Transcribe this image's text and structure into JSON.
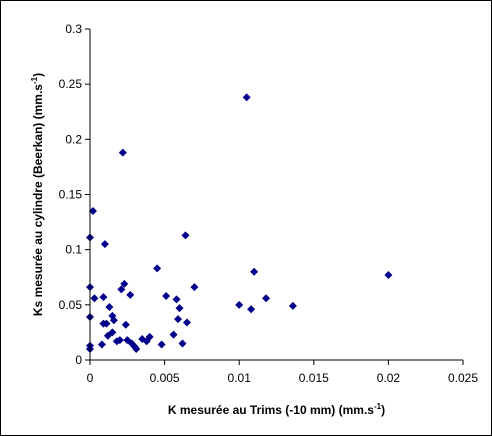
{
  "chart_data": {
    "type": "scatter",
    "xlabel": "K mesurée au Trims (-10 mm) (mm.s",
    "xlabel_sup": "-1",
    "xlabel_end": ")",
    "ylabel": "Ks mesurée au cylindre (Beerkan) (mm.s",
    "ylabel_sup": "-1",
    "ylabel_end": ")",
    "xlim": [
      0,
      0.025
    ],
    "ylim": [
      0,
      0.3
    ],
    "x_ticks": [
      "0",
      "0.005",
      "0.01",
      "0.015",
      "0.02",
      "0.025"
    ],
    "y_ticks": [
      "0",
      "0.05",
      "0.1",
      "0.15",
      "0.2",
      "0.25",
      "0.3"
    ],
    "marker_color": "#00008B",
    "marker": "diamond",
    "grid": false,
    "legend": "none",
    "series": [
      {
        "points": [
          [
            0.0,
            0.01
          ],
          [
            0.0,
            0.013
          ],
          [
            0.0,
            0.039
          ],
          [
            0.0,
            0.066
          ],
          [
            0.0,
            0.111
          ],
          [
            0.0002,
            0.135
          ],
          [
            0.0003,
            0.056
          ],
          [
            0.0008,
            0.014
          ],
          [
            0.0009,
            0.057
          ],
          [
            0.0009,
            0.033
          ],
          [
            0.001,
            0.105
          ],
          [
            0.0011,
            0.033
          ],
          [
            0.0012,
            0.022
          ],
          [
            0.0013,
            0.048
          ],
          [
            0.0015,
            0.04
          ],
          [
            0.0015,
            0.025
          ],
          [
            0.0016,
            0.036
          ],
          [
            0.0018,
            0.017
          ],
          [
            0.002,
            0.018
          ],
          [
            0.0021,
            0.064
          ],
          [
            0.0022,
            0.188
          ],
          [
            0.0023,
            0.069
          ],
          [
            0.0024,
            0.032
          ],
          [
            0.0025,
            0.018
          ],
          [
            0.0027,
            0.059
          ],
          [
            0.0028,
            0.015
          ],
          [
            0.003,
            0.012
          ],
          [
            0.0031,
            0.01
          ],
          [
            0.0035,
            0.019
          ],
          [
            0.0038,
            0.017
          ],
          [
            0.004,
            0.021
          ],
          [
            0.0045,
            0.083
          ],
          [
            0.0048,
            0.014
          ],
          [
            0.0051,
            0.058
          ],
          [
            0.0056,
            0.023
          ],
          [
            0.0058,
            0.055
          ],
          [
            0.0059,
            0.037
          ],
          [
            0.006,
            0.047
          ],
          [
            0.0062,
            0.015
          ],
          [
            0.0064,
            0.113
          ],
          [
            0.0065,
            0.034
          ],
          [
            0.007,
            0.066
          ],
          [
            0.01,
            0.05
          ],
          [
            0.0105,
            0.238
          ],
          [
            0.0108,
            0.046
          ],
          [
            0.011,
            0.08
          ],
          [
            0.0118,
            0.056
          ],
          [
            0.0136,
            0.049
          ],
          [
            0.02,
            0.077
          ]
        ]
      }
    ]
  }
}
